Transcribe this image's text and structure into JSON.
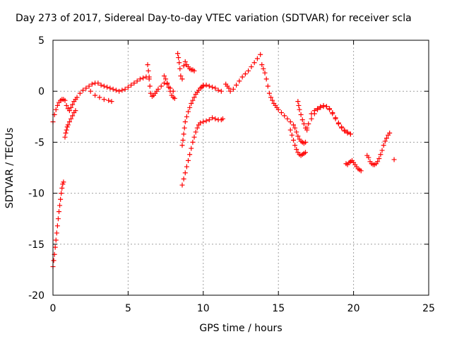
{
  "chart_data": {
    "type": "scatter",
    "title": "Day 273 of 2017, Sidereal Day-to-day VTEC variation (SDTVAR) for receiver scla",
    "xlabel": "GPS time / hours",
    "ylabel": "SDTVAR / TECUs",
    "xlim": [
      0,
      25
    ],
    "ylim": [
      -20,
      5
    ],
    "xticks": [
      0,
      5,
      10,
      15,
      20,
      25
    ],
    "yticks": [
      -20,
      -15,
      -10,
      -5,
      0,
      5
    ],
    "grid": true,
    "marker": "plus",
    "color": "#ff0000",
    "series": [
      {
        "x": [
          0.0,
          0.1,
          0.2,
          0.3,
          0.4,
          0.5,
          0.6,
          0.7,
          0.8,
          0.9,
          1.0,
          1.1,
          1.2,
          1.3,
          1.4,
          1.5,
          1.6,
          1.8,
          2.0,
          2.2,
          2.4,
          2.6,
          2.8,
          3.0,
          3.2,
          3.4,
          3.6,
          3.8,
          4.0,
          4.2,
          4.4,
          4.6,
          4.8,
          5.0,
          5.2,
          5.4,
          5.6,
          5.8,
          6.0,
          6.2,
          6.4
        ],
        "y": [
          -3.0,
          -2.3,
          -1.8,
          -1.4,
          -1.1,
          -0.9,
          -0.8,
          -0.8,
          -0.9,
          -1.4,
          -1.7,
          -1.9,
          -1.6,
          -1.3,
          -1.0,
          -0.8,
          -0.6,
          -0.2,
          0.1,
          0.3,
          0.5,
          0.7,
          0.8,
          0.8,
          0.6,
          0.5,
          0.4,
          0.3,
          0.2,
          0.1,
          0.0,
          0.1,
          0.2,
          0.4,
          0.6,
          0.8,
          1.0,
          1.2,
          1.3,
          1.4,
          1.4
        ]
      },
      {
        "x": [
          0.0,
          0.05,
          0.1,
          0.15,
          0.2,
          0.25,
          0.3,
          0.35,
          0.4,
          0.45,
          0.5,
          0.55,
          0.6,
          0.65,
          0.7
        ],
        "y": [
          -17.2,
          -16.6,
          -16.0,
          -15.3,
          -14.6,
          -13.9,
          -13.2,
          -12.5,
          -11.8,
          -11.2,
          -10.6,
          -10.0,
          -9.5,
          -9.1,
          -8.9
        ]
      },
      {
        "x": [
          0.8,
          0.85,
          0.9,
          0.95,
          1.0,
          1.1,
          1.2,
          1.3,
          1.4,
          1.5
        ],
        "y": [
          -4.5,
          -4.1,
          -3.8,
          -3.5,
          -3.3,
          -3.0,
          -2.7,
          -2.4,
          -2.1,
          -1.9
        ]
      },
      {
        "x": [
          2.5,
          2.8,
          3.1,
          3.4,
          3.7,
          3.9
        ],
        "y": [
          0.0,
          -0.4,
          -0.6,
          -0.8,
          -0.9,
          -1.0
        ]
      },
      {
        "x": [
          6.3,
          6.35,
          6.4,
          6.45,
          6.5,
          6.6,
          6.7,
          6.8,
          6.9,
          7.0,
          7.2,
          7.4,
          7.6,
          7.8,
          8.0
        ],
        "y": [
          2.6,
          2.0,
          1.2,
          0.5,
          -0.2,
          -0.5,
          -0.4,
          -0.2,
          0.0,
          0.2,
          0.5,
          0.8,
          0.7,
          0.3,
          0.0
        ]
      },
      {
        "x": [
          7.4,
          7.5,
          7.6,
          7.7,
          7.8,
          7.9,
          8.0,
          8.1
        ],
        "y": [
          1.5,
          1.2,
          0.8,
          0.4,
          0.0,
          -0.4,
          -0.6,
          -0.7
        ]
      },
      {
        "x": [
          8.3,
          8.35,
          8.4,
          8.45,
          8.5,
          8.6,
          8.7,
          8.8,
          8.9,
          9.0,
          9.1,
          9.2,
          9.3,
          9.4
        ],
        "y": [
          3.7,
          3.3,
          2.8,
          2.2,
          1.5,
          1.2,
          2.5,
          2.9,
          2.6,
          2.4,
          2.2,
          2.1,
          2.1,
          2.0
        ]
      },
      {
        "x": [
          8.6,
          8.65,
          8.7,
          8.75,
          8.8,
          8.9,
          9.0,
          9.1,
          9.2,
          9.3,
          9.4,
          9.5,
          9.6,
          9.7,
          9.8,
          9.9,
          10.0
        ],
        "y": [
          -5.3,
          -4.8,
          -4.2,
          -3.6,
          -3.0,
          -2.5,
          -2.0,
          -1.6,
          -1.2,
          -0.9,
          -0.6,
          -0.3,
          -0.1,
          0.1,
          0.3,
          0.4,
          0.5
        ]
      },
      {
        "x": [
          10.0,
          10.2,
          10.4,
          10.6,
          10.8,
          11.0,
          11.2
        ],
        "y": [
          0.6,
          0.6,
          0.5,
          0.4,
          0.3,
          0.1,
          0.0
        ]
      },
      {
        "x": [
          8.6,
          8.7,
          8.8,
          8.9,
          9.0,
          9.1,
          9.2,
          9.3,
          9.4,
          9.5,
          9.6,
          9.7,
          9.8,
          10.0,
          10.2,
          10.4,
          10.6,
          10.8,
          11.0,
          11.2,
          11.3
        ],
        "y": [
          -9.2,
          -8.6,
          -8.0,
          -7.4,
          -6.8,
          -6.2,
          -5.6,
          -5.0,
          -4.5,
          -4.0,
          -3.6,
          -3.3,
          -3.1,
          -3.0,
          -2.9,
          -2.8,
          -2.6,
          -2.7,
          -2.8,
          -2.8,
          -2.7
        ]
      },
      {
        "x": [
          11.5,
          11.6,
          11.7,
          11.8,
          12.0,
          12.2,
          12.4,
          12.6,
          12.8,
          13.0,
          13.2,
          13.4,
          13.6,
          13.8
        ],
        "y": [
          0.7,
          0.5,
          0.3,
          0.0,
          0.2,
          0.6,
          1.0,
          1.4,
          1.7,
          2.0,
          2.4,
          2.8,
          3.2,
          3.6
        ]
      },
      {
        "x": [
          13.9,
          14.0,
          14.1,
          14.2,
          14.3,
          14.4,
          14.5,
          14.6,
          14.7,
          14.8,
          14.9,
          15.0,
          15.2,
          15.4,
          15.6,
          15.8,
          16.0,
          16.1
        ],
        "y": [
          2.6,
          2.2,
          1.8,
          1.2,
          0.5,
          -0.2,
          -0.6,
          -0.9,
          -1.2,
          -1.4,
          -1.6,
          -1.8,
          -2.1,
          -2.4,
          -2.7,
          -3.0,
          -3.3,
          -3.6
        ]
      },
      {
        "x": [
          15.8,
          15.9,
          16.0,
          16.1,
          16.2,
          16.3,
          16.4,
          16.5,
          16.6,
          16.7,
          16.8
        ],
        "y": [
          -3.8,
          -4.3,
          -4.8,
          -5.3,
          -5.7,
          -6.0,
          -6.2,
          -6.3,
          -6.2,
          -6.1,
          -6.0
        ]
      },
      {
        "x": [
          16.2,
          16.3,
          16.4,
          16.5,
          16.6,
          16.7,
          16.8
        ],
        "y": [
          -4.0,
          -4.4,
          -4.7,
          -4.9,
          -5.0,
          -5.1,
          -5.0
        ]
      },
      {
        "x": [
          16.3,
          16.35,
          16.4,
          16.5,
          16.6,
          16.7,
          16.8,
          16.9
        ],
        "y": [
          -1.0,
          -1.4,
          -1.8,
          -2.3,
          -2.8,
          -3.2,
          -3.6,
          -3.8
        ]
      },
      {
        "x": [
          16.9,
          17.0,
          17.2,
          17.4,
          17.6,
          17.8,
          18.0,
          18.2,
          18.4,
          18.6,
          18.8,
          19.0,
          19.2,
          19.4,
          19.6,
          19.8
        ],
        "y": [
          -3.6,
          -3.2,
          -2.7,
          -2.2,
          -1.8,
          -1.6,
          -1.5,
          -1.5,
          -1.7,
          -2.1,
          -2.6,
          -3.1,
          -3.5,
          -3.8,
          -4.0,
          -4.2
        ]
      },
      {
        "x": [
          17.2,
          17.4,
          17.6,
          17.8,
          18.0,
          18.2,
          18.4,
          18.6,
          18.8,
          19.0,
          19.2,
          19.4,
          19.6,
          19.8
        ],
        "y": [
          -2.2,
          -1.9,
          -1.7,
          -1.5,
          -1.4,
          -1.5,
          -1.8,
          -2.2,
          -2.7,
          -3.2,
          -3.6,
          -3.9,
          -4.1,
          -4.2
        ]
      },
      {
        "x": [
          19.5,
          19.6,
          19.7,
          19.8,
          19.9,
          20.0,
          20.1,
          20.2,
          20.3,
          20.4,
          20.5
        ],
        "y": [
          -7.1,
          -7.2,
          -7.0,
          -6.9,
          -6.8,
          -7.0,
          -7.2,
          -7.4,
          -7.6,
          -7.7,
          -7.8
        ]
      },
      {
        "x": [
          20.9,
          21.0,
          21.1,
          21.2,
          21.3,
          21.4,
          21.5,
          21.6,
          21.7,
          21.8,
          21.9,
          22.0,
          22.1,
          22.2,
          22.3,
          22.4
        ],
        "y": [
          -6.3,
          -6.5,
          -6.9,
          -7.1,
          -7.2,
          -7.2,
          -7.1,
          -6.9,
          -6.6,
          -6.2,
          -5.8,
          -5.3,
          -4.9,
          -4.6,
          -4.3,
          -4.1
        ]
      },
      {
        "x": [
          22.7
        ],
        "y": [
          -6.7
        ]
      }
    ]
  }
}
